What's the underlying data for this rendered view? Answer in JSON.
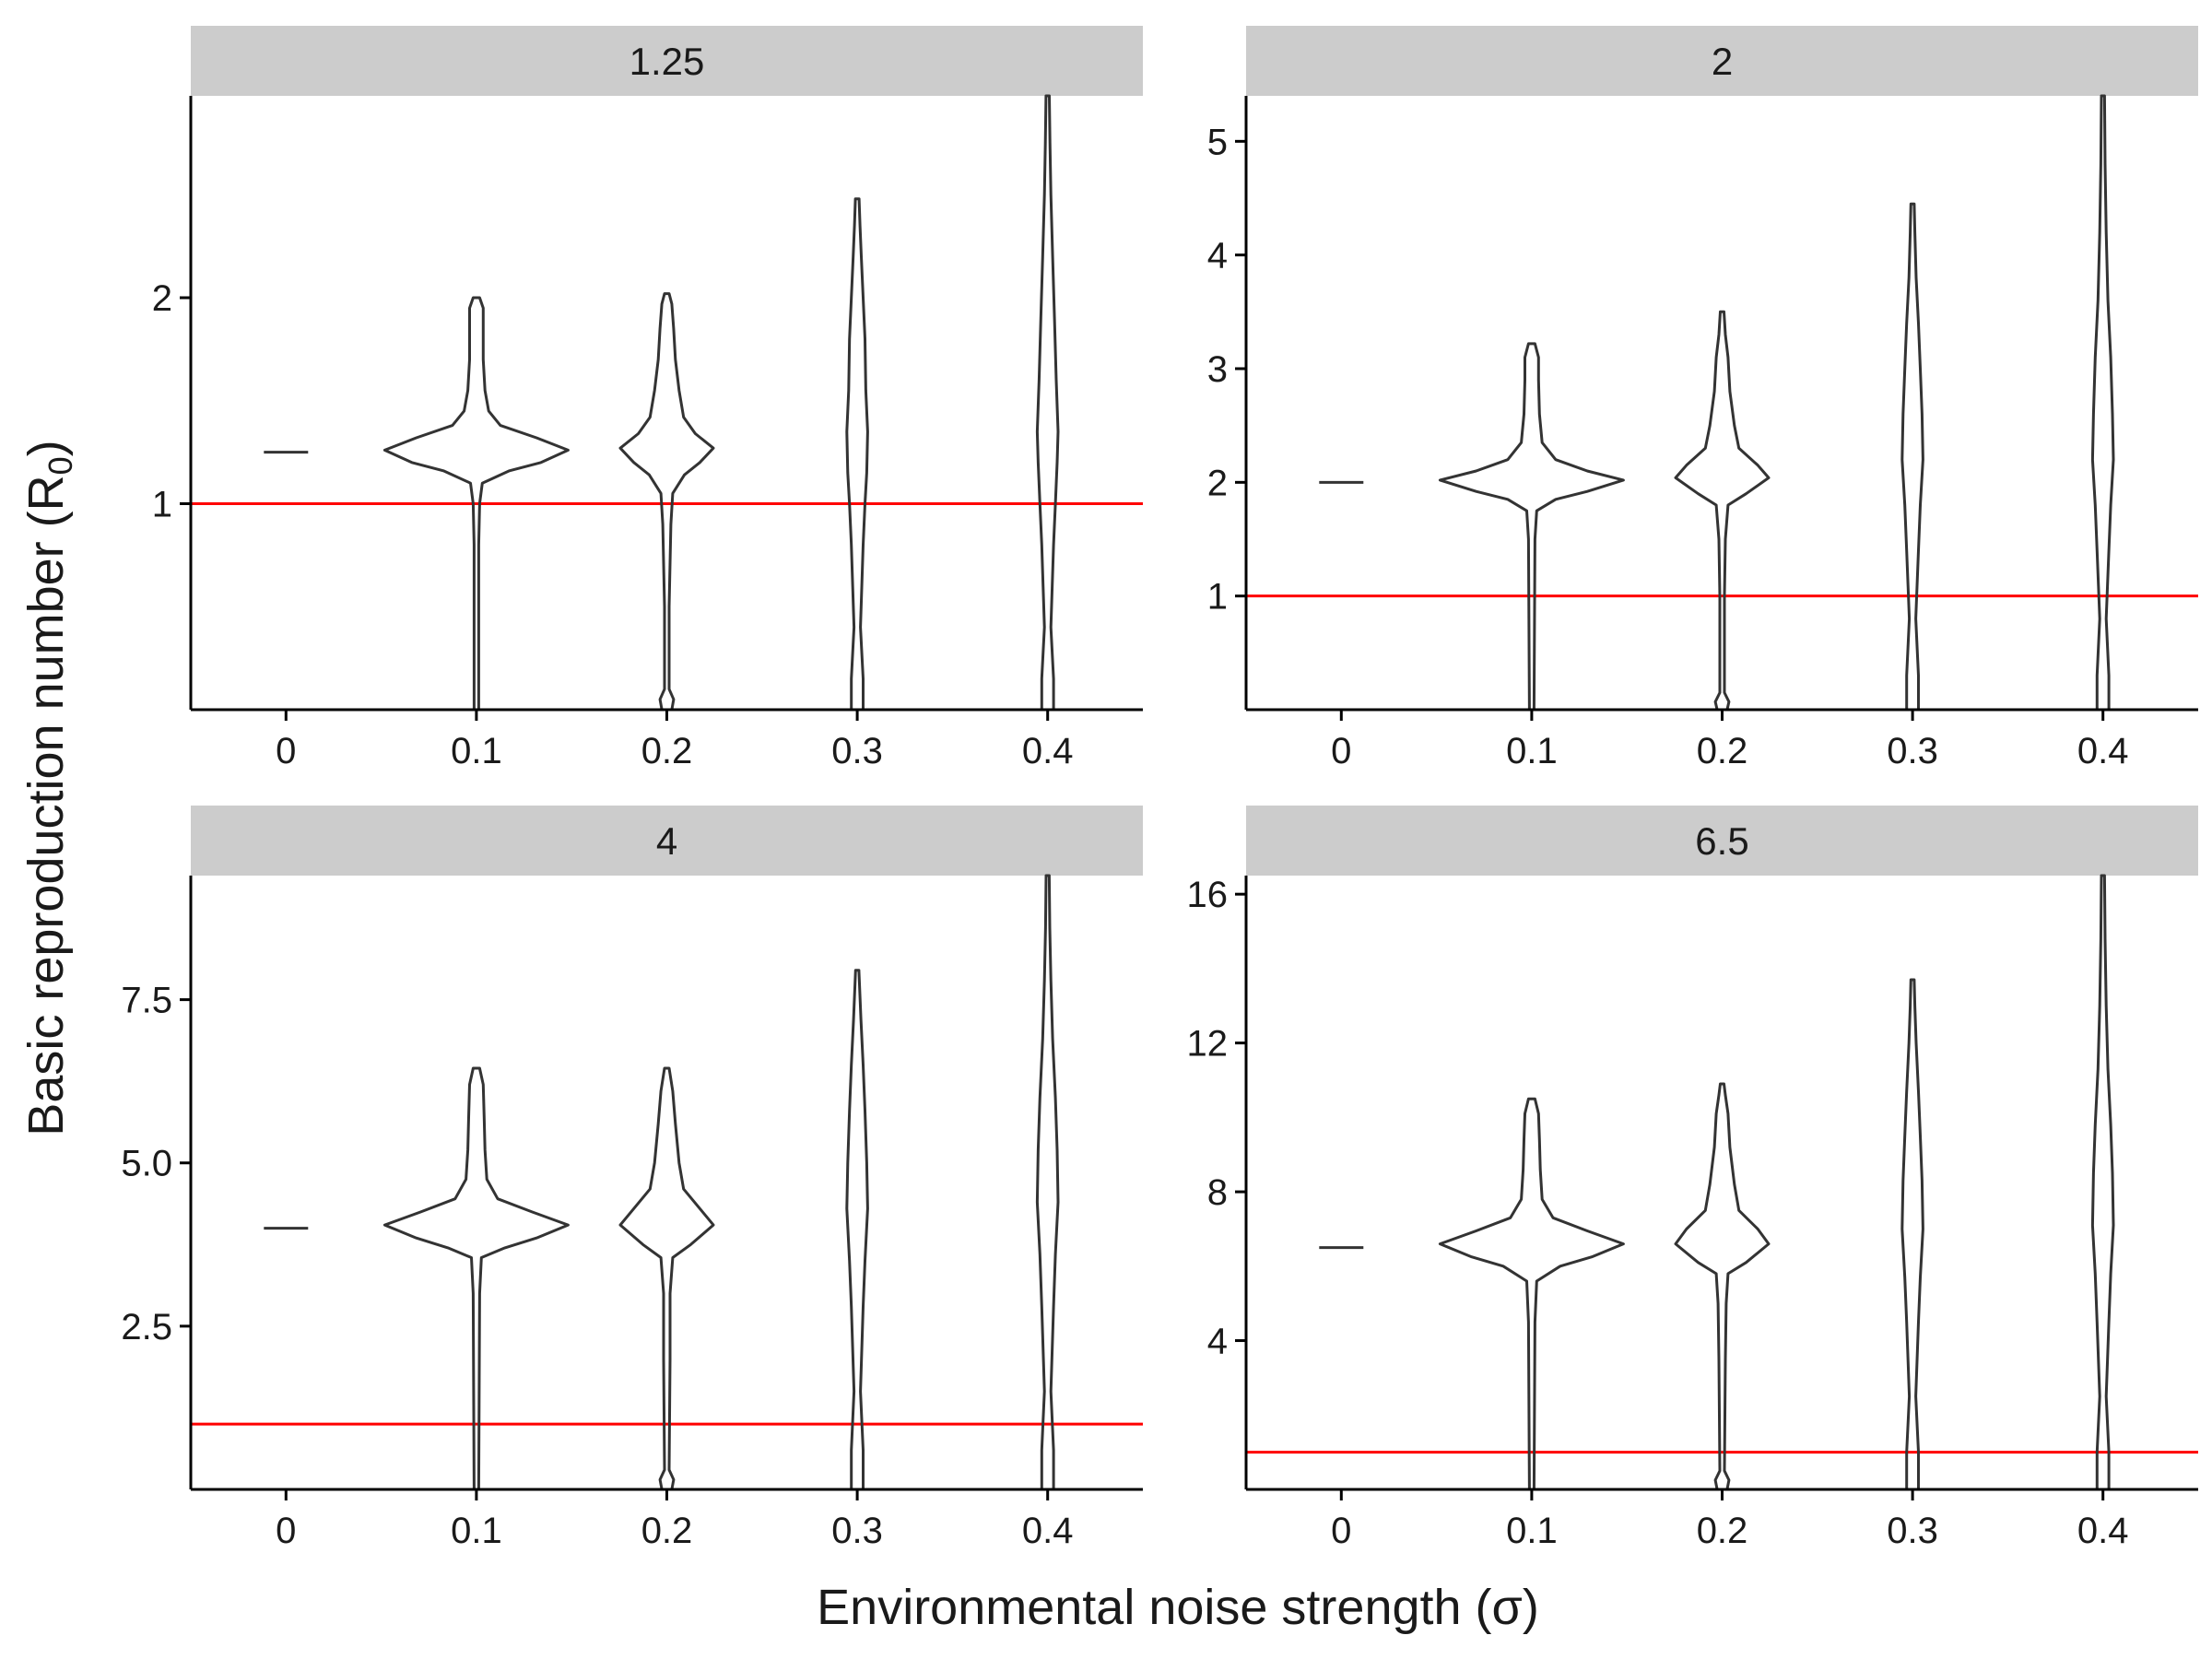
{
  "figure": {
    "xlabel": "Environmental noise strength (σ)",
    "ylabel_main": "Basic reproduction number (R",
    "ylabel_sub": "0",
    "ylabel_close": ")"
  },
  "colors": {
    "violin_stroke": "#333333",
    "reference_line": "#ff0000",
    "strip_fill": "#cccccc",
    "axis": "#000000"
  },
  "chart_data": [
    {
      "type": "violin",
      "facet_label": "1.25",
      "x_categories": [
        "0",
        "0.1",
        "0.2",
        "0.3",
        "0.4"
      ],
      "ylim": [
        0,
        2.98
      ],
      "y_ticks": [
        1,
        2
      ],
      "y_tick_labels": [
        "1",
        "2"
      ],
      "reference_line_y": 1,
      "violins": [
        {
          "x": "0",
          "ymin": 1.25,
          "ymax": 1.25,
          "profile": [
            [
              1.25,
              1.0
            ]
          ]
        },
        {
          "x": "0.1",
          "ymin": 0.0,
          "ymax": 2.0,
          "profile": [
            [
              0.0,
              0.01
            ],
            [
              0.8,
              0.01
            ],
            [
              1.0,
              0.02
            ],
            [
              1.1,
              0.05
            ],
            [
              1.16,
              0.35
            ],
            [
              1.2,
              0.7
            ],
            [
              1.26,
              1.0
            ],
            [
              1.32,
              0.65
            ],
            [
              1.38,
              0.25
            ],
            [
              1.45,
              0.12
            ],
            [
              1.55,
              0.08
            ],
            [
              1.7,
              0.06
            ],
            [
              1.85,
              0.06
            ],
            [
              1.95,
              0.06
            ],
            [
              2.0,
              0.02
            ]
          ]
        },
        {
          "x": "0.2",
          "ymin": 0.0,
          "ymax": 2.02,
          "profile": [
            [
              0.0,
              0.04
            ],
            [
              0.05,
              0.06
            ],
            [
              0.1,
              0.01
            ],
            [
              0.5,
              0.01
            ],
            [
              0.9,
              0.03
            ],
            [
              1.05,
              0.05
            ],
            [
              1.14,
              0.18
            ],
            [
              1.2,
              0.35
            ],
            [
              1.27,
              0.5
            ],
            [
              1.34,
              0.3
            ],
            [
              1.42,
              0.17
            ],
            [
              1.55,
              0.12
            ],
            [
              1.7,
              0.08
            ],
            [
              1.85,
              0.06
            ],
            [
              1.97,
              0.04
            ],
            [
              2.02,
              0.01
            ]
          ]
        },
        {
          "x": "0.3",
          "ymin": 0.0,
          "ymax": 2.48,
          "profile": [
            [
              0.0,
              0.05
            ],
            [
              0.15,
              0.05
            ],
            [
              0.4,
              0.02
            ],
            [
              0.8,
              0.05
            ],
            [
              1.0,
              0.07
            ],
            [
              1.15,
              0.09
            ],
            [
              1.35,
              0.1
            ],
            [
              1.55,
              0.08
            ],
            [
              1.8,
              0.07
            ],
            [
              2.0,
              0.05
            ],
            [
              2.2,
              0.03
            ],
            [
              2.35,
              0.015
            ],
            [
              2.48,
              0.005
            ]
          ]
        },
        {
          "x": "0.4",
          "ymin": 0.0,
          "ymax": 2.98,
          "profile": [
            [
              0.0,
              0.05
            ],
            [
              0.15,
              0.05
            ],
            [
              0.4,
              0.02
            ],
            [
              0.8,
              0.05
            ],
            [
              1.0,
              0.07
            ],
            [
              1.2,
              0.09
            ],
            [
              1.35,
              0.1
            ],
            [
              1.6,
              0.08
            ],
            [
              1.9,
              0.06
            ],
            [
              2.2,
              0.04
            ],
            [
              2.5,
              0.02
            ],
            [
              2.75,
              0.01
            ],
            [
              2.98,
              0.003
            ]
          ]
        }
      ]
    },
    {
      "type": "violin",
      "facet_label": "2",
      "x_categories": [
        "0",
        "0.1",
        "0.2",
        "0.3",
        "0.4"
      ],
      "ylim": [
        0,
        5.4
      ],
      "y_ticks": [
        1,
        2,
        3,
        4,
        5
      ],
      "y_tick_labels": [
        "1",
        "2",
        "3",
        "4",
        "5"
      ],
      "reference_line_y": 1,
      "violins": [
        {
          "x": "0",
          "ymin": 2.0,
          "ymax": 2.0,
          "profile": [
            [
              2.0,
              1.0
            ]
          ]
        },
        {
          "x": "0.1",
          "ymin": 0.0,
          "ymax": 3.22,
          "profile": [
            [
              0.0,
              0.01
            ],
            [
              1.5,
              0.02
            ],
            [
              1.75,
              0.04
            ],
            [
              1.85,
              0.25
            ],
            [
              1.92,
              0.6
            ],
            [
              2.02,
              1.0
            ],
            [
              2.1,
              0.6
            ],
            [
              2.2,
              0.25
            ],
            [
              2.35,
              0.1
            ],
            [
              2.6,
              0.07
            ],
            [
              2.9,
              0.06
            ],
            [
              3.1,
              0.06
            ],
            [
              3.22,
              0.02
            ]
          ]
        },
        {
          "x": "0.2",
          "ymin": 0.0,
          "ymax": 3.5,
          "profile": [
            [
              0.0,
              0.04
            ],
            [
              0.07,
              0.06
            ],
            [
              0.15,
              0.01
            ],
            [
              1.0,
              0.01
            ],
            [
              1.5,
              0.02
            ],
            [
              1.8,
              0.05
            ],
            [
              1.9,
              0.25
            ],
            [
              2.04,
              0.5
            ],
            [
              2.15,
              0.38
            ],
            [
              2.3,
              0.17
            ],
            [
              2.5,
              0.12
            ],
            [
              2.8,
              0.07
            ],
            [
              3.1,
              0.05
            ],
            [
              3.3,
              0.02
            ],
            [
              3.5,
              0.005
            ]
          ]
        },
        {
          "x": "0.3",
          "ymin": 0.0,
          "ymax": 4.45,
          "profile": [
            [
              0.0,
              0.05
            ],
            [
              0.3,
              0.05
            ],
            [
              0.8,
              0.02
            ],
            [
              1.4,
              0.05
            ],
            [
              1.8,
              0.07
            ],
            [
              2.2,
              0.1
            ],
            [
              2.6,
              0.09
            ],
            [
              3.0,
              0.07
            ],
            [
              3.4,
              0.05
            ],
            [
              3.8,
              0.025
            ],
            [
              4.2,
              0.01
            ],
            [
              4.45,
              0.003
            ]
          ]
        },
        {
          "x": "0.4",
          "ymin": 0.0,
          "ymax": 5.4,
          "profile": [
            [
              0.0,
              0.05
            ],
            [
              0.3,
              0.05
            ],
            [
              0.8,
              0.02
            ],
            [
              1.4,
              0.05
            ],
            [
              1.8,
              0.07
            ],
            [
              2.2,
              0.1
            ],
            [
              2.6,
              0.09
            ],
            [
              3.1,
              0.07
            ],
            [
              3.6,
              0.04
            ],
            [
              4.2,
              0.02
            ],
            [
              4.8,
              0.008
            ],
            [
              5.4,
              0.002
            ]
          ]
        }
      ]
    },
    {
      "type": "violin",
      "facet_label": "4",
      "x_categories": [
        "0",
        "0.1",
        "0.2",
        "0.3",
        "0.4"
      ],
      "ylim": [
        0,
        9.4
      ],
      "y_ticks": [
        2.5,
        5.0,
        7.5
      ],
      "y_tick_labels": [
        "2.5",
        "5.0",
        "7.5"
      ],
      "reference_line_y": 1,
      "violins": [
        {
          "x": "0",
          "ymin": 4.0,
          "ymax": 4.0,
          "profile": [
            [
              4.0,
              1.0
            ]
          ]
        },
        {
          "x": "0.1",
          "ymin": 0.0,
          "ymax": 6.45,
          "profile": [
            [
              0.0,
              0.01
            ],
            [
              3.0,
              0.02
            ],
            [
              3.55,
              0.04
            ],
            [
              3.7,
              0.3
            ],
            [
              3.85,
              0.65
            ],
            [
              4.05,
              1.0
            ],
            [
              4.25,
              0.6
            ],
            [
              4.45,
              0.22
            ],
            [
              4.75,
              0.1
            ],
            [
              5.2,
              0.08
            ],
            [
              5.7,
              0.07
            ],
            [
              6.2,
              0.06
            ],
            [
              6.45,
              0.02
            ]
          ]
        },
        {
          "x": "0.2",
          "ymin": 0.0,
          "ymax": 6.45,
          "profile": [
            [
              0.0,
              0.04
            ],
            [
              0.15,
              0.06
            ],
            [
              0.3,
              0.01
            ],
            [
              2.0,
              0.02
            ],
            [
              3.0,
              0.02
            ],
            [
              3.55,
              0.05
            ],
            [
              3.75,
              0.25
            ],
            [
              4.05,
              0.5
            ],
            [
              4.3,
              0.35
            ],
            [
              4.6,
              0.17
            ],
            [
              5.0,
              0.12
            ],
            [
              5.6,
              0.08
            ],
            [
              6.1,
              0.05
            ],
            [
              6.45,
              0.01
            ]
          ]
        },
        {
          "x": "0.3",
          "ymin": 0.0,
          "ymax": 7.95,
          "profile": [
            [
              0.0,
              0.05
            ],
            [
              0.6,
              0.05
            ],
            [
              1.5,
              0.02
            ],
            [
              2.8,
              0.05
            ],
            [
              3.5,
              0.07
            ],
            [
              4.3,
              0.1
            ],
            [
              5.0,
              0.09
            ],
            [
              5.8,
              0.07
            ],
            [
              6.5,
              0.05
            ],
            [
              7.2,
              0.025
            ],
            [
              7.95,
              0.003
            ]
          ]
        },
        {
          "x": "0.4",
          "ymin": 0.0,
          "ymax": 9.4,
          "profile": [
            [
              0.0,
              0.05
            ],
            [
              0.6,
              0.05
            ],
            [
              1.5,
              0.02
            ],
            [
              2.8,
              0.05
            ],
            [
              3.6,
              0.07
            ],
            [
              4.4,
              0.1
            ],
            [
              5.2,
              0.09
            ],
            [
              6.0,
              0.07
            ],
            [
              6.9,
              0.04
            ],
            [
              7.8,
              0.02
            ],
            [
              8.6,
              0.008
            ],
            [
              9.4,
              0.002
            ]
          ]
        }
      ]
    },
    {
      "type": "violin",
      "facet_label": "6.5",
      "x_categories": [
        "0",
        "0.1",
        "0.2",
        "0.3",
        "0.4"
      ],
      "ylim": [
        0,
        16.5
      ],
      "y_ticks": [
        4,
        8,
        12,
        16
      ],
      "y_tick_labels": [
        "4",
        "8",
        "12",
        "16"
      ],
      "reference_line_y": 1,
      "violins": [
        {
          "x": "0",
          "ymin": 6.5,
          "ymax": 6.5,
          "profile": [
            [
              6.5,
              1.0
            ]
          ]
        },
        {
          "x": "0.1",
          "ymin": 0.0,
          "ymax": 10.5,
          "profile": [
            [
              0.0,
              0.01
            ],
            [
              4.5,
              0.02
            ],
            [
              5.6,
              0.04
            ],
            [
              6.0,
              0.3
            ],
            [
              6.25,
              0.65
            ],
            [
              6.6,
              1.0
            ],
            [
              6.95,
              0.6
            ],
            [
              7.3,
              0.22
            ],
            [
              7.8,
              0.1
            ],
            [
              8.6,
              0.08
            ],
            [
              9.4,
              0.07
            ],
            [
              10.1,
              0.06
            ],
            [
              10.5,
              0.02
            ]
          ]
        },
        {
          "x": "0.2",
          "ymin": 0.0,
          "ymax": 10.9,
          "profile": [
            [
              0.0,
              0.04
            ],
            [
              0.25,
              0.06
            ],
            [
              0.5,
              0.01
            ],
            [
              3.5,
              0.02
            ],
            [
              5.0,
              0.03
            ],
            [
              5.8,
              0.05
            ],
            [
              6.1,
              0.25
            ],
            [
              6.6,
              0.5
            ],
            [
              7.0,
              0.38
            ],
            [
              7.5,
              0.17
            ],
            [
              8.2,
              0.12
            ],
            [
              9.2,
              0.07
            ],
            [
              10.1,
              0.05
            ],
            [
              10.6,
              0.02
            ],
            [
              10.9,
              0.005
            ]
          ]
        },
        {
          "x": "0.3",
          "ymin": 0.0,
          "ymax": 13.7,
          "profile": [
            [
              0.0,
              0.05
            ],
            [
              1.0,
              0.05
            ],
            [
              2.5,
              0.02
            ],
            [
              4.5,
              0.05
            ],
            [
              5.7,
              0.07
            ],
            [
              7.0,
              0.1
            ],
            [
              8.3,
              0.09
            ],
            [
              9.5,
              0.07
            ],
            [
              10.7,
              0.05
            ],
            [
              12.0,
              0.025
            ],
            [
              13.0,
              0.01
            ],
            [
              13.7,
              0.003
            ]
          ]
        },
        {
          "x": "0.4",
          "ymin": 0.0,
          "ymax": 16.5,
          "profile": [
            [
              0.0,
              0.05
            ],
            [
              1.0,
              0.05
            ],
            [
              2.5,
              0.02
            ],
            [
              4.5,
              0.05
            ],
            [
              5.8,
              0.07
            ],
            [
              7.1,
              0.1
            ],
            [
              8.5,
              0.09
            ],
            [
              9.8,
              0.07
            ],
            [
              11.3,
              0.04
            ],
            [
              13.0,
              0.02
            ],
            [
              14.8,
              0.008
            ],
            [
              16.5,
              0.002
            ]
          ]
        }
      ]
    }
  ]
}
